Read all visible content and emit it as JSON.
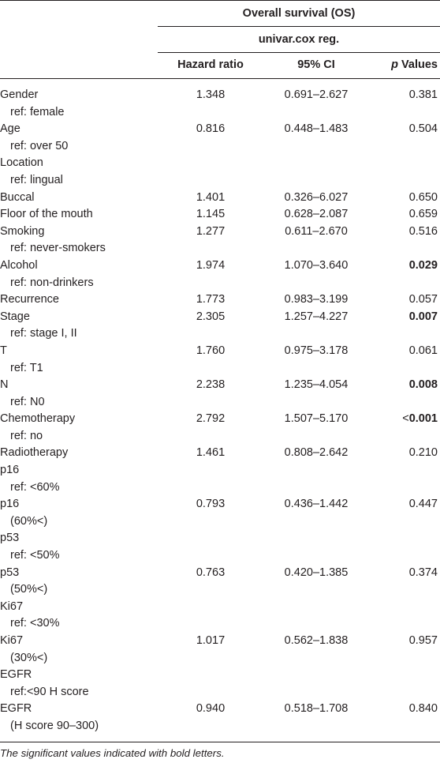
{
  "header": {
    "group_title": "Overall survival (OS)",
    "method_title": "univar.cox reg.",
    "col_hazard_ratio": "Hazard ratio",
    "col_ci": "95% CI",
    "col_p_italic": "p",
    "col_p_rest": " Values"
  },
  "rows": [
    {
      "label": "Gender",
      "sub": false,
      "hr": "1.348",
      "ci": "0.691–2.627",
      "p": "0.381",
      "p_prefix": "",
      "bold": false
    },
    {
      "label": "ref: female",
      "sub": true,
      "hr": "",
      "ci": "",
      "p": "",
      "p_prefix": "",
      "bold": false
    },
    {
      "label": "Age",
      "sub": false,
      "hr": "0.816",
      "ci": "0.448–1.483",
      "p": "0.504",
      "p_prefix": "",
      "bold": false
    },
    {
      "label": "ref: over 50",
      "sub": true,
      "hr": "",
      "ci": "",
      "p": "",
      "p_prefix": "",
      "bold": false
    },
    {
      "label": "Location",
      "sub": false,
      "hr": "",
      "ci": "",
      "p": "",
      "p_prefix": "",
      "bold": false
    },
    {
      "label": "ref: lingual",
      "sub": true,
      "hr": "",
      "ci": "",
      "p": "",
      "p_prefix": "",
      "bold": false
    },
    {
      "label": "Buccal",
      "sub": false,
      "hr": "1.401",
      "ci": "0.326–6.027",
      "p": "0.650",
      "p_prefix": "",
      "bold": false
    },
    {
      "label": "Floor of the mouth",
      "sub": false,
      "hr": "1.145",
      "ci": "0.628–2.087",
      "p": "0.659",
      "p_prefix": "",
      "bold": false
    },
    {
      "label": "Smoking",
      "sub": false,
      "hr": "1.277",
      "ci": "0.611–2.670",
      "p": "0.516",
      "p_prefix": "",
      "bold": false
    },
    {
      "label": "ref: never-smokers",
      "sub": true,
      "hr": "",
      "ci": "",
      "p": "",
      "p_prefix": "",
      "bold": false
    },
    {
      "label": "Alcohol",
      "sub": false,
      "hr": "1.974",
      "ci": "1.070–3.640",
      "p": "0.029",
      "p_prefix": "",
      "bold": true
    },
    {
      "label": "ref: non-drinkers",
      "sub": true,
      "hr": "",
      "ci": "",
      "p": "",
      "p_prefix": "",
      "bold": false
    },
    {
      "label": "Recurrence",
      "sub": false,
      "hr": "1.773",
      "ci": "0.983–3.199",
      "p": "0.057",
      "p_prefix": "",
      "bold": false
    },
    {
      "label": "Stage",
      "sub": false,
      "hr": "2.305",
      "ci": "1.257–4.227",
      "p": "0.007",
      "p_prefix": "",
      "bold": true
    },
    {
      "label": "ref: stage I, II",
      "sub": true,
      "hr": "",
      "ci": "",
      "p": "",
      "p_prefix": "",
      "bold": false
    },
    {
      "label": "T",
      "sub": false,
      "hr": "1.760",
      "ci": "0.975–3.178",
      "p": "0.061",
      "p_prefix": "",
      "bold": false
    },
    {
      "label": "ref: T1",
      "sub": true,
      "hr": "",
      "ci": "",
      "p": "",
      "p_prefix": "",
      "bold": false
    },
    {
      "label": "N",
      "sub": false,
      "hr": "2.238",
      "ci": "1.235–4.054",
      "p": "0.008",
      "p_prefix": "",
      "bold": true
    },
    {
      "label": "ref: N0",
      "sub": true,
      "hr": "",
      "ci": "",
      "p": "",
      "p_prefix": "",
      "bold": false
    },
    {
      "label": "Chemotherapy",
      "sub": false,
      "hr": "2.792",
      "ci": "1.507–5.170",
      "p": "0.001",
      "p_prefix": "<",
      "bold": true
    },
    {
      "label": "ref: no",
      "sub": true,
      "hr": "",
      "ci": "",
      "p": "",
      "p_prefix": "",
      "bold": false
    },
    {
      "label": "Radiotherapy",
      "sub": false,
      "hr": "1.461",
      "ci": "0.808–2.642",
      "p": "0.210",
      "p_prefix": "",
      "bold": false
    },
    {
      "label": "p16",
      "sub": false,
      "hr": "",
      "ci": "",
      "p": "",
      "p_prefix": "",
      "bold": false
    },
    {
      "label": "ref: <60%",
      "sub": true,
      "hr": "",
      "ci": "",
      "p": "",
      "p_prefix": "",
      "bold": false
    },
    {
      "label": "p16",
      "sub": false,
      "hr": "0.793",
      "ci": "0.436–1.442",
      "p": "0.447",
      "p_prefix": "",
      "bold": false
    },
    {
      "label": "(60%<)",
      "sub": true,
      "hr": "",
      "ci": "",
      "p": "",
      "p_prefix": "",
      "bold": false
    },
    {
      "label": "p53",
      "sub": false,
      "hr": "",
      "ci": "",
      "p": "",
      "p_prefix": "",
      "bold": false
    },
    {
      "label": "ref: <50%",
      "sub": true,
      "hr": "",
      "ci": "",
      "p": "",
      "p_prefix": "",
      "bold": false
    },
    {
      "label": "p53",
      "sub": false,
      "hr": "0.763",
      "ci": "0.420–1.385",
      "p": "0.374",
      "p_prefix": "",
      "bold": false
    },
    {
      "label": "(50%<)",
      "sub": true,
      "hr": "",
      "ci": "",
      "p": "",
      "p_prefix": "",
      "bold": false
    },
    {
      "label": "Ki67",
      "sub": false,
      "hr": "",
      "ci": "",
      "p": "",
      "p_prefix": "",
      "bold": false
    },
    {
      "label": "ref: <30%",
      "sub": true,
      "hr": "",
      "ci": "",
      "p": "",
      "p_prefix": "",
      "bold": false
    },
    {
      "label": "Ki67",
      "sub": false,
      "hr": "1.017",
      "ci": "0.562–1.838",
      "p": "0.957",
      "p_prefix": "",
      "bold": false
    },
    {
      "label": "(30%<)",
      "sub": true,
      "hr": "",
      "ci": "",
      "p": "",
      "p_prefix": "",
      "bold": false
    },
    {
      "label": "EGFR",
      "sub": false,
      "hr": "",
      "ci": "",
      "p": "",
      "p_prefix": "",
      "bold": false
    },
    {
      "label": "ref:<90 H score",
      "sub": true,
      "hr": "",
      "ci": "",
      "p": "",
      "p_prefix": "",
      "bold": false
    },
    {
      "label": "EGFR",
      "sub": false,
      "hr": "0.940",
      "ci": "0.518–1.708",
      "p": "0.840",
      "p_prefix": "",
      "bold": false
    },
    {
      "label": "(H score 90–300)",
      "sub": true,
      "hr": "",
      "ci": "",
      "p": "",
      "p_prefix": "",
      "bold": false
    }
  ],
  "footnote": "The significant values indicated with bold letters."
}
